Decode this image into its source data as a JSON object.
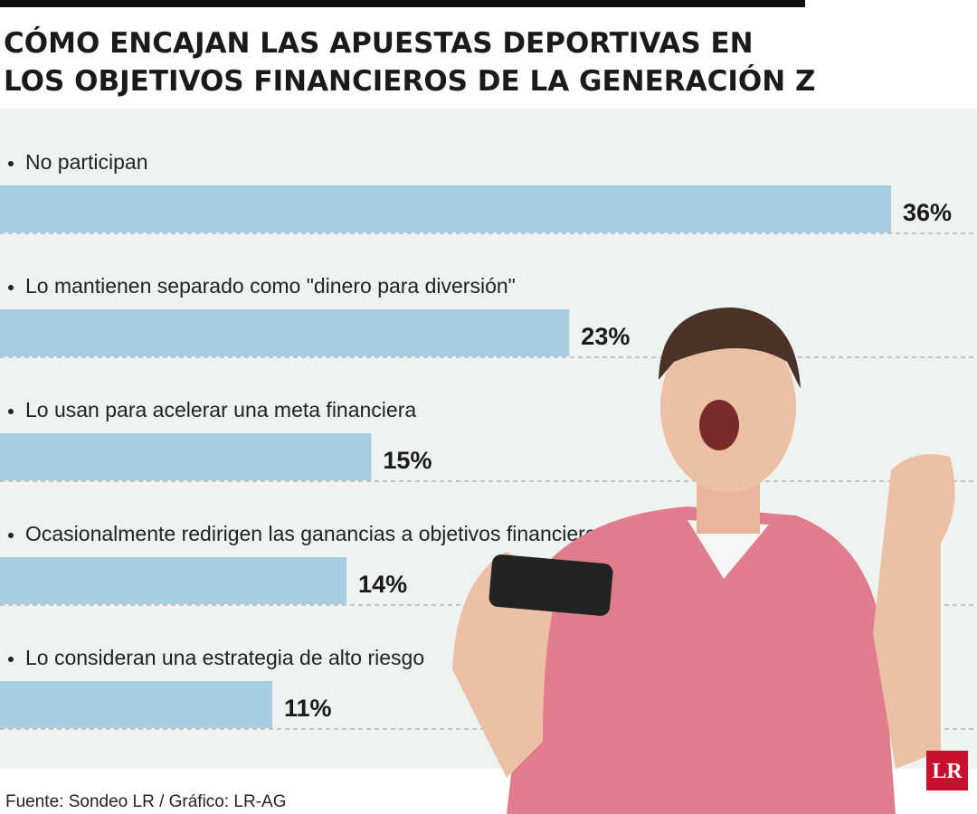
{
  "chart_data": {
    "type": "bar",
    "orientation": "horizontal",
    "title": "CÓMO ENCAJAN LAS APUESTAS DEPORTIVAS EN LOS OBJETIVOS FINANCIEROS DE LA GENERACIÓN Z",
    "categories": [
      "No participan",
      "Lo mantienen separado como \"dinero para diversión\"",
      "Lo usan para acelerar una meta financiera",
      "Ocasionalmente redirigen las ganancias a objetivos financieros",
      "Lo consideran una estrategia de alto riesgo"
    ],
    "values": [
      36,
      23,
      15,
      14,
      11
    ],
    "value_labels": [
      "36%",
      "23%",
      "15%",
      "14%",
      "11%"
    ],
    "color": "#a6cde0",
    "source": "Fuente: Sondeo LR / Gráfico: LR-AG",
    "logo": "LR"
  }
}
